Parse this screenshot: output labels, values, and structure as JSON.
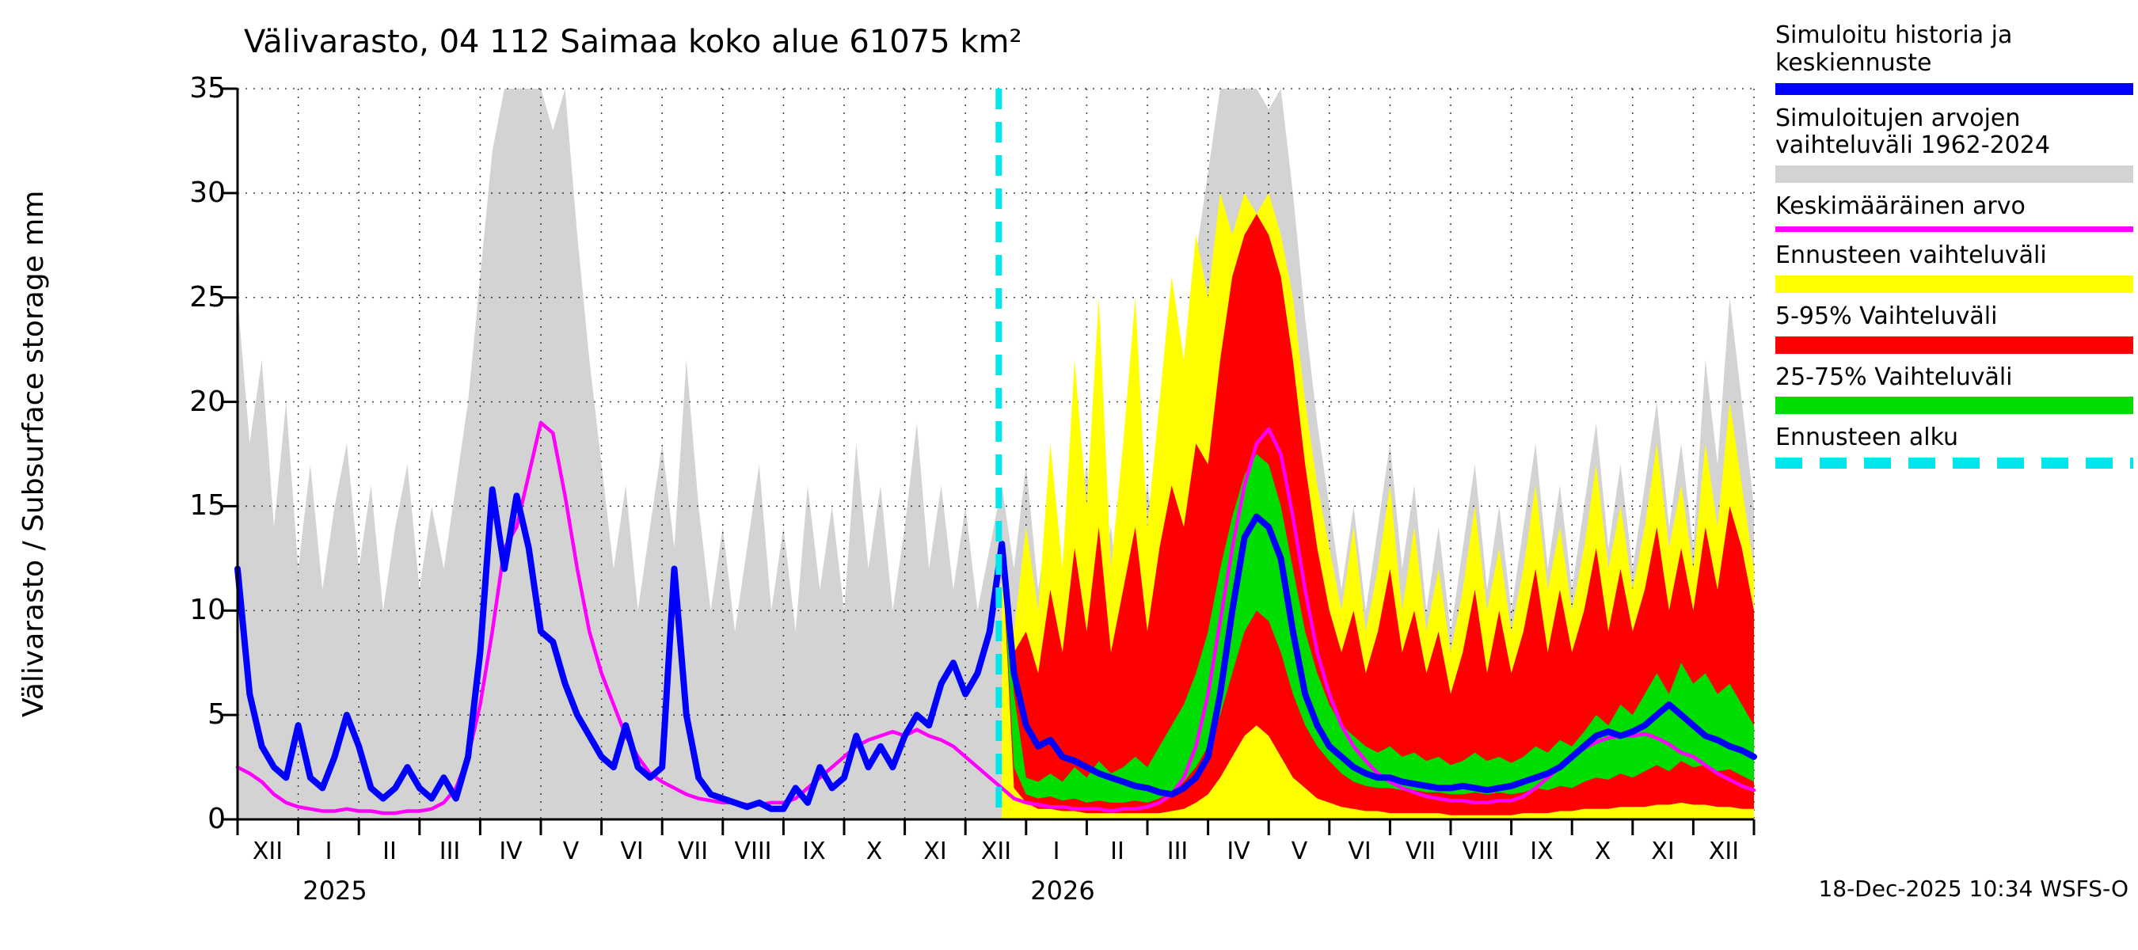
{
  "title": "Välivarasto, 04 112 Saimaa koko alue 61075 km²",
  "timestamp": "18-Dec-2025 10:34 WSFS-O",
  "y_axis": {
    "label": "Välivarasto / Subsurface storage  mm",
    "ticks": [
      0,
      5,
      10,
      15,
      20,
      25,
      30,
      35
    ]
  },
  "x_axis": {
    "month_labels": [
      "XII",
      "I",
      "II",
      "III",
      "IV",
      "V",
      "VI",
      "VII",
      "VIII",
      "IX",
      "X",
      "XI",
      "XII",
      "I",
      "II",
      "III",
      "IV",
      "V",
      "VI",
      "VII",
      "VIII",
      "IX",
      "X",
      "XI",
      "XII"
    ],
    "year_labels": [
      {
        "text": "2025",
        "center_month": 1.6
      },
      {
        "text": "2026",
        "center_month": 13.6
      }
    ]
  },
  "legend": [
    {
      "label": "Simuloitu historia ja keskiennuste",
      "color": "#0000ff",
      "style": "thick-line"
    },
    {
      "label": "Simuloitujen arvojen vaihteluväli 1962-2024",
      "color": "#d3d3d3",
      "style": "band"
    },
    {
      "label": "Keskimääräinen arvo",
      "color": "#ff00ff",
      "style": "thin-line"
    },
    {
      "label": "Ennusteen vaihteluväli",
      "color": "#ffff00",
      "style": "band"
    },
    {
      "label": "5-95% Vaihteluväli",
      "color": "#ff0000",
      "style": "band"
    },
    {
      "label": "25-75% Vaihteluväli",
      "color": "#00dd00",
      "style": "band"
    },
    {
      "label": "Ennusteen alku",
      "color": "#00e5ee",
      "style": "dashed-line"
    }
  ],
  "chart_data": {
    "type": "line",
    "title": "Välivarasto, 04 112 Saimaa koko alue 61075 km²",
    "xlabel": "",
    "ylabel": "Välivarasto / Subsurface storage mm",
    "ylim": [
      0,
      35
    ],
    "months_total": 25,
    "points_per_month": 5,
    "x_unit": "months from 1-Dec-2024, 5 samples per month",
    "forecast_start_month": 12.55,
    "forecast_line_color": "#00e5ee",
    "grid": true,
    "legend_position": "right",
    "bands": [
      {
        "name": "sim-range-1962-2024",
        "color": "#d3d3d3",
        "start_index": 0,
        "min_const": 0,
        "max": [
          25,
          18,
          22,
          14,
          20,
          12,
          17,
          11,
          15,
          18,
          12,
          16,
          10,
          14,
          17,
          11,
          15,
          12,
          16,
          20,
          26,
          32,
          35,
          35,
          35,
          35,
          33,
          35,
          28,
          22,
          17,
          12,
          16,
          10,
          14,
          18,
          13,
          22,
          15,
          10,
          14,
          9,
          13,
          17,
          10,
          14,
          9,
          16,
          11,
          15,
          10,
          18,
          12,
          16,
          10,
          14,
          19,
          12,
          16,
          11,
          15,
          10,
          13,
          16,
          12,
          17,
          11,
          15,
          9,
          13,
          17,
          11,
          14,
          9,
          13,
          16,
          12,
          18,
          22,
          27,
          31,
          35,
          35,
          35,
          35,
          34,
          35,
          30,
          24,
          19,
          15,
          11,
          15,
          10,
          14,
          18,
          12,
          16,
          10,
          14,
          9,
          13,
          17,
          11,
          15,
          10,
          14,
          18,
          12,
          16,
          11,
          15,
          19,
          13,
          17,
          12,
          16,
          20,
          14,
          18,
          13,
          22,
          17,
          25,
          20,
          15
        ]
      },
      {
        "name": "forecast-range",
        "color": "#ffff00",
        "start_index": 63,
        "min_const": 0,
        "max": [
          13.4,
          9,
          14,
          10,
          18,
          12,
          22,
          15,
          25,
          12,
          18,
          25,
          14,
          20,
          26,
          22,
          28,
          25,
          30,
          28,
          30,
          29,
          30,
          28,
          25,
          20,
          16,
          13,
          10,
          14,
          9,
          12,
          16,
          10,
          14,
          9,
          12,
          8,
          11,
          15,
          10,
          13,
          9,
          12,
          16,
          11,
          14,
          10,
          13,
          17,
          12,
          15,
          11,
          14,
          18,
          13,
          16,
          12,
          18,
          14,
          20,
          16,
          12
        ]
      },
      {
        "name": "range-5-95",
        "color": "#ff0000",
        "start_index": 63,
        "max": [
          13.3,
          8,
          9,
          7,
          11,
          8,
          13,
          9,
          14,
          8,
          11,
          14,
          9,
          13,
          16,
          14,
          18,
          17,
          22,
          26,
          28,
          29,
          28,
          26,
          22,
          17,
          13,
          10,
          8,
          10,
          7,
          9,
          12,
          8,
          10,
          7,
          9,
          6,
          8,
          11,
          7,
          10,
          7,
          9,
          12,
          8,
          11,
          8,
          10,
          13,
          9,
          12,
          9,
          11,
          14,
          10,
          13,
          10,
          14,
          11,
          15,
          13,
          10
        ],
        "min": [
          12.9,
          1.5,
          0.8,
          0.5,
          0.5,
          0.4,
          0.4,
          0.3,
          0.3,
          0.3,
          0.3,
          0.3,
          0.3,
          0.3,
          0.4,
          0.5,
          0.8,
          1.2,
          2,
          3,
          4,
          4.5,
          4,
          3,
          2,
          1.5,
          1,
          0.8,
          0.6,
          0.5,
          0.4,
          0.4,
          0.3,
          0.3,
          0.3,
          0.3,
          0.3,
          0.2,
          0.2,
          0.2,
          0.2,
          0.2,
          0.2,
          0.3,
          0.3,
          0.3,
          0.4,
          0.4,
          0.5,
          0.5,
          0.5,
          0.6,
          0.6,
          0.6,
          0.7,
          0.7,
          0.8,
          0.7,
          0.7,
          0.6,
          0.6,
          0.5,
          0.5
        ]
      },
      {
        "name": "range-25-75",
        "color": "#00dd00",
        "start_index": 63,
        "max": [
          13.2,
          6,
          2,
          1.8,
          2.2,
          1.8,
          2.5,
          2,
          2.8,
          2.2,
          2.5,
          3,
          2.5,
          3.5,
          4.5,
          5.5,
          7,
          9,
          12,
          14.5,
          16.5,
          17.5,
          17,
          15,
          12,
          9,
          7,
          5.5,
          4.5,
          4,
          3.5,
          3.2,
          3.5,
          3,
          3.2,
          2.8,
          3,
          2.6,
          2.8,
          3.2,
          2.8,
          3,
          2.7,
          3,
          3.5,
          3.2,
          3.8,
          3.5,
          4.2,
          5,
          4.5,
          5.5,
          5,
          6,
          7,
          6,
          7.5,
          6.5,
          7,
          6,
          6.5,
          5.5,
          4.5
        ],
        "min": [
          13,
          2.5,
          1.2,
          1,
          1.1,
          0.9,
          1,
          0.8,
          0.9,
          0.8,
          0.8,
          0.9,
          0.8,
          1,
          1.3,
          1.8,
          2.5,
          3.5,
          5,
          7,
          9,
          10,
          9.5,
          8,
          6,
          4.5,
          3.5,
          2.8,
          2.2,
          1.8,
          1.6,
          1.5,
          1.5,
          1.4,
          1.4,
          1.3,
          1.3,
          1.2,
          1.2,
          1.3,
          1.2,
          1.3,
          1.2,
          1.3,
          1.5,
          1.4,
          1.6,
          1.5,
          1.8,
          2,
          1.9,
          2.2,
          2,
          2.3,
          2.6,
          2.3,
          2.8,
          2.5,
          2.6,
          2.3,
          2.4,
          2.1,
          1.8
        ]
      }
    ],
    "lines": [
      {
        "name": "mean-1962-2024",
        "color": "#ff00ff",
        "width": 4.5,
        "start_index": 0,
        "values": [
          2.5,
          2.2,
          1.8,
          1.2,
          0.8,
          0.6,
          0.5,
          0.4,
          0.4,
          0.5,
          0.4,
          0.4,
          0.3,
          0.3,
          0.4,
          0.4,
          0.5,
          0.8,
          1.5,
          3,
          5.5,
          9,
          13,
          14,
          16.5,
          19,
          18.5,
          15.5,
          12,
          9,
          7,
          5.5,
          4,
          3,
          2.2,
          1.8,
          1.5,
          1.2,
          1,
          0.9,
          0.8,
          0.8,
          0.7,
          0.7,
          0.8,
          0.8,
          1,
          1.5,
          2,
          2.5,
          3,
          3.5,
          3.8,
          4,
          4.2,
          4,
          4.3,
          4,
          3.8,
          3.5,
          3,
          2.5,
          2,
          1.5,
          1,
          0.8,
          0.7,
          0.6,
          0.6,
          0.5,
          0.5,
          0.5,
          0.4,
          0.5,
          0.5,
          0.6,
          0.8,
          1.2,
          2,
          3.5,
          6,
          9.5,
          13,
          16,
          18,
          18.7,
          17.5,
          14.5,
          11,
          8,
          6,
          4.5,
          3.5,
          2.8,
          2.2,
          1.8,
          1.5,
          1.3,
          1.1,
          1,
          0.9,
          0.9,
          0.8,
          0.8,
          0.9,
          0.9,
          1.1,
          1.5,
          2,
          2.5,
          3,
          3.4,
          3.7,
          3.9,
          4,
          4,
          4.1,
          3.9,
          3.6,
          3.2,
          3,
          2.6,
          2.2,
          1.9,
          1.6,
          1.4
        ]
      },
      {
        "name": "simulated-history-and-mean-forecast",
        "color": "#0000ff",
        "width": 8,
        "start_index": 0,
        "values": [
          12,
          6,
          3.5,
          2.5,
          2,
          4.5,
          2,
          1.5,
          3,
          5,
          3.5,
          1.5,
          1,
          1.5,
          2.5,
          1.5,
          1,
          2,
          1,
          3,
          8,
          15.8,
          12,
          15.5,
          13,
          9,
          8.5,
          6.5,
          5,
          4,
          3,
          2.5,
          4.5,
          2.5,
          2,
          2.5,
          12,
          5,
          2,
          1.2,
          1,
          0.8,
          0.6,
          0.8,
          0.5,
          0.5,
          1.5,
          0.8,
          2.5,
          1.5,
          2,
          4,
          2.5,
          3.5,
          2.5,
          4,
          5,
          4.5,
          6.5,
          7.5,
          6,
          7,
          9,
          13.2,
          7,
          4.5,
          3.5,
          3.8,
          3,
          2.8,
          2.5,
          2.2,
          2,
          1.8,
          1.6,
          1.5,
          1.3,
          1.2,
          1.5,
          2,
          3,
          6,
          10,
          13.5,
          14.5,
          14,
          12.5,
          9,
          6,
          4.5,
          3.5,
          3,
          2.5,
          2.2,
          2,
          2,
          1.8,
          1.7,
          1.6,
          1.5,
          1.5,
          1.6,
          1.5,
          1.4,
          1.5,
          1.6,
          1.8,
          2,
          2.2,
          2.5,
          3,
          3.5,
          4,
          4.2,
          4,
          4.2,
          4.5,
          5,
          5.5,
          5,
          4.5,
          4,
          3.8,
          3.5,
          3.3,
          3
        ]
      }
    ]
  }
}
